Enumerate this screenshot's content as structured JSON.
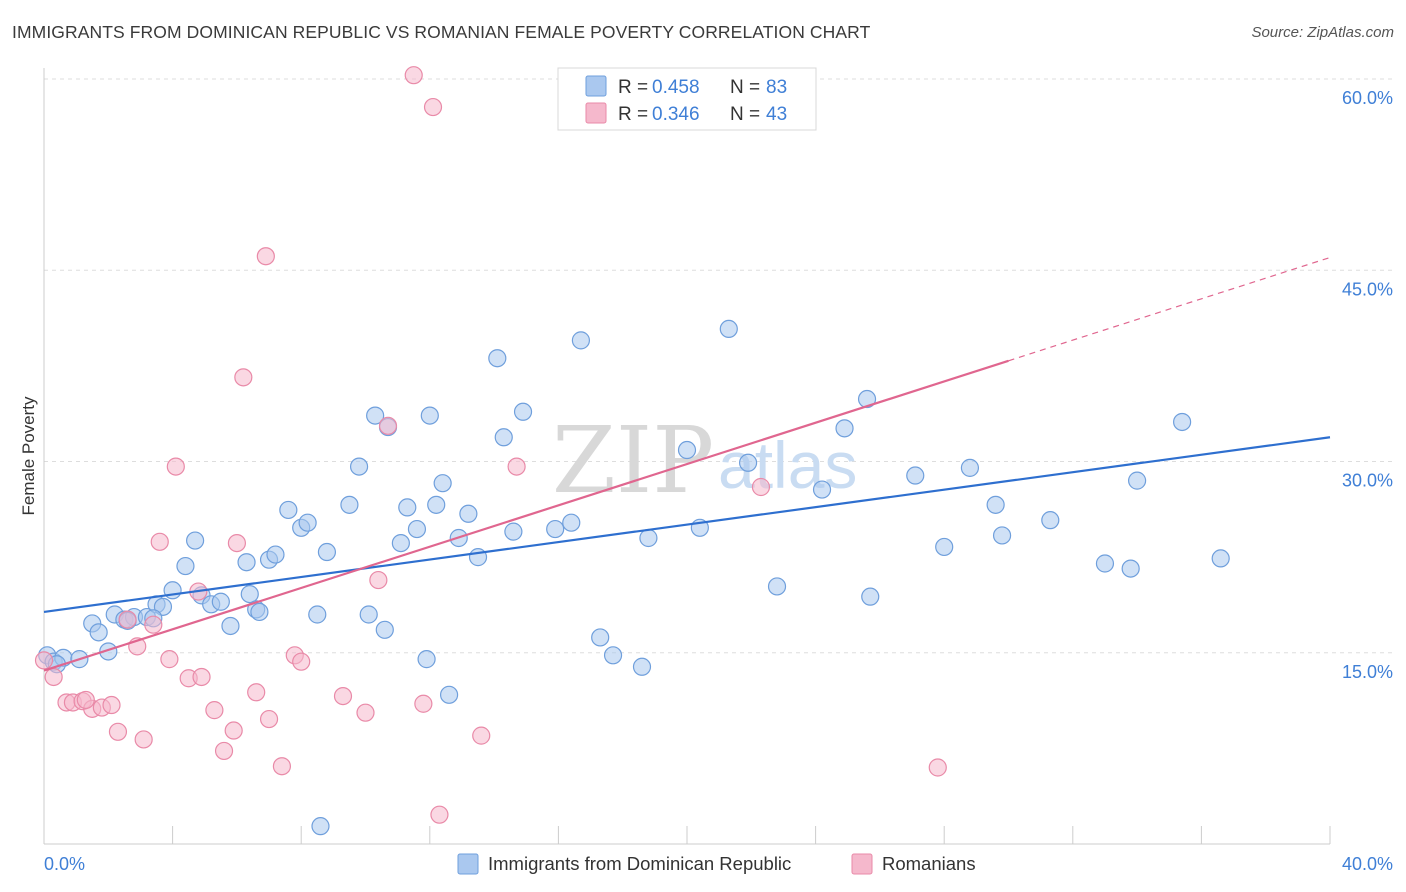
{
  "title": "IMMIGRANTS FROM DOMINICAN REPUBLIC VS ROMANIAN FEMALE POVERTY CORRELATION CHART",
  "source": "Source: ZipAtlas.com",
  "watermark": {
    "zip": "ZIP",
    "atlas": "atlas"
  },
  "legend": {
    "series1": {
      "r_label": "R = ",
      "r_value": "0.458",
      "n_label": "N = ",
      "n_value": "83"
    },
    "series2": {
      "r_label": "R = ",
      "r_value": "0.346",
      "n_label": "N = ",
      "n_value": "43"
    }
  },
  "colors": {
    "blue_fill": "#aac8ef",
    "blue_stroke": "#6f9fdc",
    "blue_line": "#2e6fcf",
    "pink_fill": "#f5b8cc",
    "pink_stroke": "#e98aa8",
    "pink_line": "#e0668f",
    "grid": "#dddddd",
    "axis_label": "#3f7fd6"
  },
  "chart_data": {
    "type": "scatter",
    "title": "IMMIGRANTS FROM DOMINICAN REPUBLIC VS ROMANIAN FEMALE POVERTY CORRELATION CHART",
    "xlabel": "",
    "ylabel": "Female Poverty",
    "xlim": [
      0,
      40
    ],
    "ylim": [
      0,
      60
    ],
    "x_tick_labels": [
      "0.0%",
      "40.0%"
    ],
    "y_ticks": [
      15,
      30,
      45,
      60
    ],
    "y_tick_labels": [
      "15.0%",
      "30.0%",
      "45.0%",
      "60.0%"
    ],
    "grid": true,
    "legend_position": "top-center",
    "series": [
      {
        "name": "Immigrants from Dominican Republic",
        "color": "#aac8ef",
        "trend": {
          "x": [
            0,
            40
          ],
          "y": [
            18.2,
            31.9
          ],
          "dashed_from": null
        },
        "points": [
          [
            0.1,
            14.8
          ],
          [
            0.3,
            14.3
          ],
          [
            0.6,
            14.6
          ],
          [
            1.1,
            14.5
          ],
          [
            1.5,
            17.3
          ],
          [
            1.7,
            16.6
          ],
          [
            2.0,
            15.1
          ],
          [
            2.2,
            18.0
          ],
          [
            2.5,
            17.6
          ],
          [
            2.8,
            17.8
          ],
          [
            3.2,
            17.8
          ],
          [
            3.5,
            18.8
          ],
          [
            3.7,
            18.6
          ],
          [
            4.0,
            19.9
          ],
          [
            4.4,
            21.8
          ],
          [
            4.7,
            23.8
          ],
          [
            4.9,
            19.5
          ],
          [
            5.2,
            18.8
          ],
          [
            5.5,
            19.0
          ],
          [
            5.8,
            17.1
          ],
          [
            6.3,
            22.1
          ],
          [
            6.4,
            19.6
          ],
          [
            6.6,
            18.4
          ],
          [
            7.0,
            22.3
          ],
          [
            7.2,
            22.7
          ],
          [
            7.6,
            26.2
          ],
          [
            8.0,
            24.8
          ],
          [
            8.2,
            25.2
          ],
          [
            8.5,
            18.0
          ],
          [
            8.8,
            22.9
          ],
          [
            9.5,
            26.6
          ],
          [
            9.8,
            29.6
          ],
          [
            10.1,
            18.0
          ],
          [
            10.3,
            33.6
          ],
          [
            10.6,
            16.8
          ],
          [
            10.7,
            32.7
          ],
          [
            11.1,
            23.6
          ],
          [
            11.3,
            26.4
          ],
          [
            11.6,
            24.7
          ],
          [
            11.9,
            14.5
          ],
          [
            12.0,
            33.6
          ],
          [
            12.2,
            26.6
          ],
          [
            12.4,
            28.3
          ],
          [
            12.6,
            11.7
          ],
          [
            12.9,
            24.0
          ],
          [
            13.2,
            25.9
          ],
          [
            13.5,
            22.5
          ],
          [
            14.1,
            38.1
          ],
          [
            14.3,
            31.9
          ],
          [
            14.6,
            24.5
          ],
          [
            14.9,
            33.9
          ],
          [
            15.9,
            24.7
          ],
          [
            16.4,
            25.2
          ],
          [
            16.7,
            39.5
          ],
          [
            17.3,
            16.2
          ],
          [
            17.7,
            14.8
          ],
          [
            18.6,
            13.9
          ],
          [
            18.8,
            24.0
          ],
          [
            20.0,
            30.9
          ],
          [
            20.4,
            24.8
          ],
          [
            21.3,
            40.4
          ],
          [
            21.9,
            29.9
          ],
          [
            22.8,
            20.2
          ],
          [
            24.2,
            27.8
          ],
          [
            24.9,
            32.6
          ],
          [
            25.6,
            34.9
          ],
          [
            25.7,
            19.4
          ],
          [
            27.1,
            28.9
          ],
          [
            28.0,
            23.3
          ],
          [
            28.8,
            29.5
          ],
          [
            29.6,
            26.6
          ],
          [
            29.8,
            24.2
          ],
          [
            31.3,
            25.4
          ],
          [
            33.0,
            22.0
          ],
          [
            33.8,
            21.6
          ],
          [
            34.0,
            28.5
          ],
          [
            35.4,
            33.1
          ],
          [
            36.6,
            22.4
          ],
          [
            0.4,
            14.1
          ],
          [
            3.4,
            17.7
          ],
          [
            8.6,
            1.4
          ],
          [
            6.7,
            18.2
          ],
          [
            2.6,
            17.5
          ]
        ]
      },
      {
        "name": "Romanians",
        "color": "#f5b8cc",
        "trend": {
          "x": [
            0,
            40
          ],
          "y": [
            13.6,
            46.0
          ],
          "dashed_from": 30
        },
        "points": [
          [
            0.0,
            14.4
          ],
          [
            0.3,
            13.1
          ],
          [
            0.7,
            11.1
          ],
          [
            0.9,
            11.1
          ],
          [
            1.2,
            11.2
          ],
          [
            1.5,
            10.6
          ],
          [
            1.8,
            10.7
          ],
          [
            2.1,
            10.9
          ],
          [
            2.3,
            8.8
          ],
          [
            2.6,
            17.6
          ],
          [
            2.9,
            15.5
          ],
          [
            3.1,
            8.2
          ],
          [
            3.4,
            17.2
          ],
          [
            3.6,
            23.7
          ],
          [
            3.9,
            14.5
          ],
          [
            4.1,
            29.6
          ],
          [
            4.5,
            13.0
          ],
          [
            4.8,
            19.8
          ],
          [
            4.9,
            13.1
          ],
          [
            5.3,
            10.5
          ],
          [
            5.6,
            7.3
          ],
          [
            5.9,
            8.9
          ],
          [
            6.0,
            23.6
          ],
          [
            6.2,
            36.6
          ],
          [
            6.6,
            11.9
          ],
          [
            6.9,
            46.1
          ],
          [
            7.0,
            9.8
          ],
          [
            7.4,
            6.1
          ],
          [
            7.8,
            14.8
          ],
          [
            8.0,
            14.3
          ],
          [
            9.3,
            11.6
          ],
          [
            10.0,
            10.3
          ],
          [
            10.7,
            32.8
          ],
          [
            10.4,
            20.7
          ],
          [
            11.8,
            11.0
          ],
          [
            11.5,
            60.3
          ],
          [
            12.1,
            57.8
          ],
          [
            13.6,
            8.5
          ],
          [
            14.7,
            29.6
          ],
          [
            22.3,
            28.0
          ],
          [
            27.8,
            6.0
          ],
          [
            12.3,
            2.3
          ],
          [
            1.3,
            11.3
          ]
        ]
      }
    ]
  }
}
